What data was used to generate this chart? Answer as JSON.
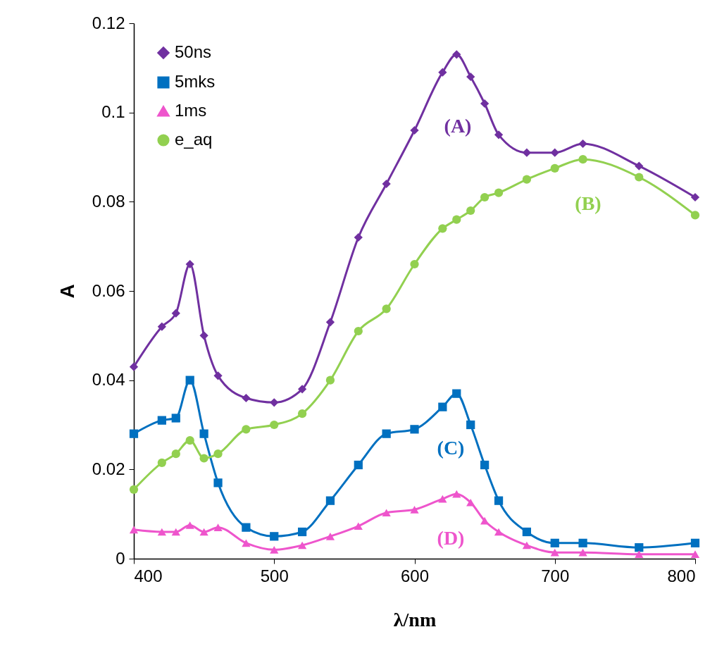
{
  "chart_data": {
    "type": "line",
    "xlabel": "λ/nm",
    "ylabel": "A",
    "x": [
      400,
      420,
      430,
      440,
      450,
      460,
      480,
      500,
      520,
      540,
      560,
      580,
      600,
      620,
      630,
      640,
      650,
      660,
      680,
      700,
      720,
      760,
      800
    ],
    "series": [
      {
        "name": "50ns",
        "color": "#7030a0",
        "marker": "diamond",
        "values": [
          0.043,
          0.052,
          0.055,
          0.066,
          0.05,
          0.041,
          0.036,
          0.035,
          0.038,
          0.053,
          0.072,
          0.084,
          0.096,
          0.109,
          0.113,
          0.108,
          0.102,
          0.095,
          0.091,
          0.091,
          0.093,
          0.088,
          0.081
        ]
      },
      {
        "name": "5mks",
        "color": "#0070c0",
        "marker": "square",
        "values": [
          0.028,
          0.031,
          0.0315,
          0.04,
          0.028,
          0.017,
          0.007,
          0.005,
          0.006,
          0.013,
          0.021,
          0.028,
          0.029,
          0.034,
          0.037,
          0.03,
          0.021,
          0.013,
          0.006,
          0.0035,
          0.0035,
          0.0025,
          0.0035
        ]
      },
      {
        "name": "1ms",
        "color": "#ee55cc",
        "marker": "triangle",
        "values": [
          0.0065,
          0.006,
          0.006,
          0.0075,
          0.006,
          0.007,
          0.0035,
          0.002,
          0.003,
          0.005,
          0.0073,
          0.0103,
          0.011,
          0.0134,
          0.0145,
          0.0126,
          0.0085,
          0.006,
          0.003,
          0.0014,
          0.0014,
          0.001,
          0.001
        ]
      },
      {
        "name": "e_aq",
        "color": "#92d050",
        "marker": "circle",
        "values": [
          0.0155,
          0.0215,
          0.0235,
          0.0265,
          0.0225,
          0.0235,
          0.029,
          0.03,
          0.0325,
          0.04,
          0.051,
          0.056,
          0.066,
          0.074,
          0.076,
          0.078,
          0.081,
          0.082,
          0.085,
          0.0875,
          0.0895,
          0.0855,
          0.077
        ]
      }
    ],
    "annotations": [
      "(A)",
      "(B)",
      "(C)",
      "(D)"
    ],
    "xlim": [
      400,
      800
    ],
    "xticks": [
      400,
      500,
      600,
      700,
      800
    ],
    "ylim": [
      0,
      0.12
    ],
    "yticks": [
      0,
      0.02,
      0.04,
      0.06,
      0.08,
      0.1,
      0.12
    ],
    "grid": false,
    "legend": "top left",
    "line_style": "solid"
  }
}
